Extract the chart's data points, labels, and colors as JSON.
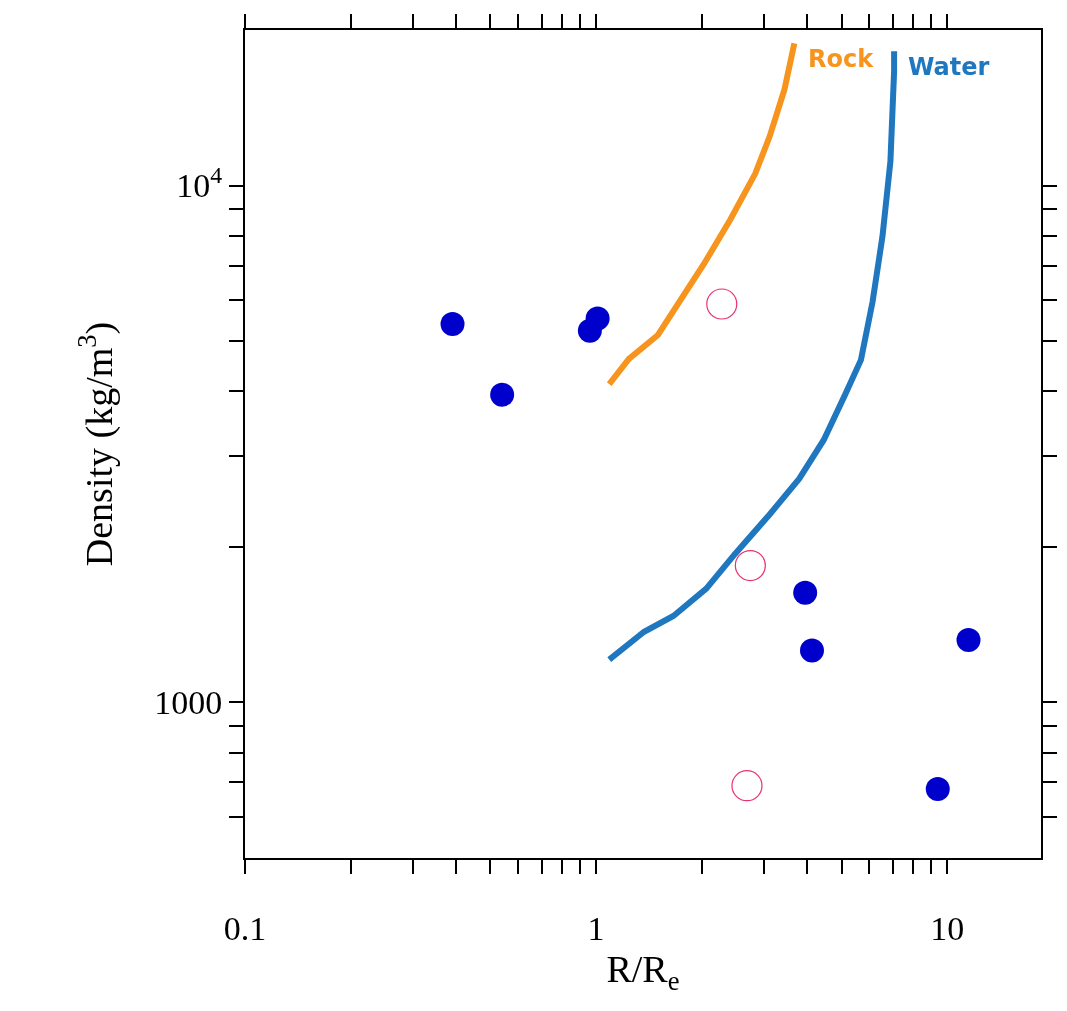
{
  "chart_data": {
    "type": "scatter",
    "xlabel": "R/R$_{e}$",
    "ylabel": "Density (kg/m$^{3}$)",
    "log": "xy",
    "grid": false,
    "legend": false,
    "xlim": [
      0.1,
      18.5
    ],
    "ylim": [
      500,
      20000
    ],
    "xticks": [
      0.1,
      {
        "value": 0.2,
        "label": null
      },
      {
        "value": 0.3,
        "label": null
      },
      {
        "value": 0.4,
        "label": null
      },
      {
        "value": 0.5,
        "label": null
      },
      {
        "value": 0.6,
        "label": null
      },
      {
        "value": 0.7,
        "label": null
      },
      {
        "value": 0.8,
        "label": null
      },
      {
        "value": 0.9,
        "label": null
      },
      1,
      {
        "value": 2,
        "label": null
      },
      {
        "value": 3,
        "label": null
      },
      {
        "value": 4,
        "label": null
      },
      {
        "value": 5,
        "label": null
      },
      {
        "value": 6,
        "label": null
      },
      {
        "value": 7,
        "label": null
      },
      {
        "value": 8,
        "label": null
      },
      {
        "value": 9,
        "label": null
      },
      10
    ],
    "yticks": [
      {
        "value": 600,
        "label": null
      },
      {
        "value": 700,
        "label": null
      },
      {
        "value": 800,
        "label": null
      },
      {
        "value": 900,
        "label": null
      },
      1000,
      {
        "value": 2000,
        "label": null
      },
      {
        "value": 3000,
        "label": null
      },
      {
        "value": 4000,
        "label": null
      },
      {
        "value": 5000,
        "label": null
      },
      {
        "value": 6000,
        "label": null
      },
      {
        "value": 7000,
        "label": null
      },
      {
        "value": 8000,
        "label": null
      },
      {
        "value": 9000,
        "label": null
      },
      {
        "value": 10000,
        "label": "10$^{4}$"
      }
    ],
    "series": [
      {
        "name": "Rock",
        "type": "line",
        "color": "#f7941d",
        "marker": "none",
        "line_style": "solid",
        "x": [
          1.09,
          1.24,
          1.5,
          2.03,
          2.41,
          2.84,
          3.12,
          3.44,
          3.67
        ],
        "values": [
          4130,
          4620,
          5140,
          7060,
          8590,
          10550,
          12440,
          15350,
          18850
        ]
      },
      {
        "name": "Water",
        "type": "line",
        "color": "#1f77bf",
        "marker": "none",
        "line_style": "solid",
        "x": [
          1.09,
          1.37,
          1.66,
          2.06,
          2.49,
          3.12,
          3.79,
          4.45,
          5.12,
          5.68,
          6.13,
          6.54,
          6.89,
          7.06,
          7.06
        ],
        "values": [
          1210,
          1370,
          1470,
          1660,
          1940,
          2310,
          2710,
          3220,
          3940,
          4600,
          5960,
          7970,
          11130,
          16630,
          18190
        ]
      },
      {
        "type": "scatter",
        "color": "#0000cc",
        "marker": "circle",
        "x": [
          0.39,
          0.54,
          0.96,
          1.01,
          3.94,
          4.12,
          11.5,
          9.4
        ],
        "values": [
          5400,
          3940,
          5240,
          5530,
          1630,
          1260,
          1320,
          680
        ]
      },
      {
        "type": "scatter",
        "color": "#e8336b",
        "marker": "circle-open",
        "x": [
          2.28,
          2.75,
          2.69
        ],
        "values": [
          5900,
          1840,
          690
        ]
      }
    ]
  }
}
